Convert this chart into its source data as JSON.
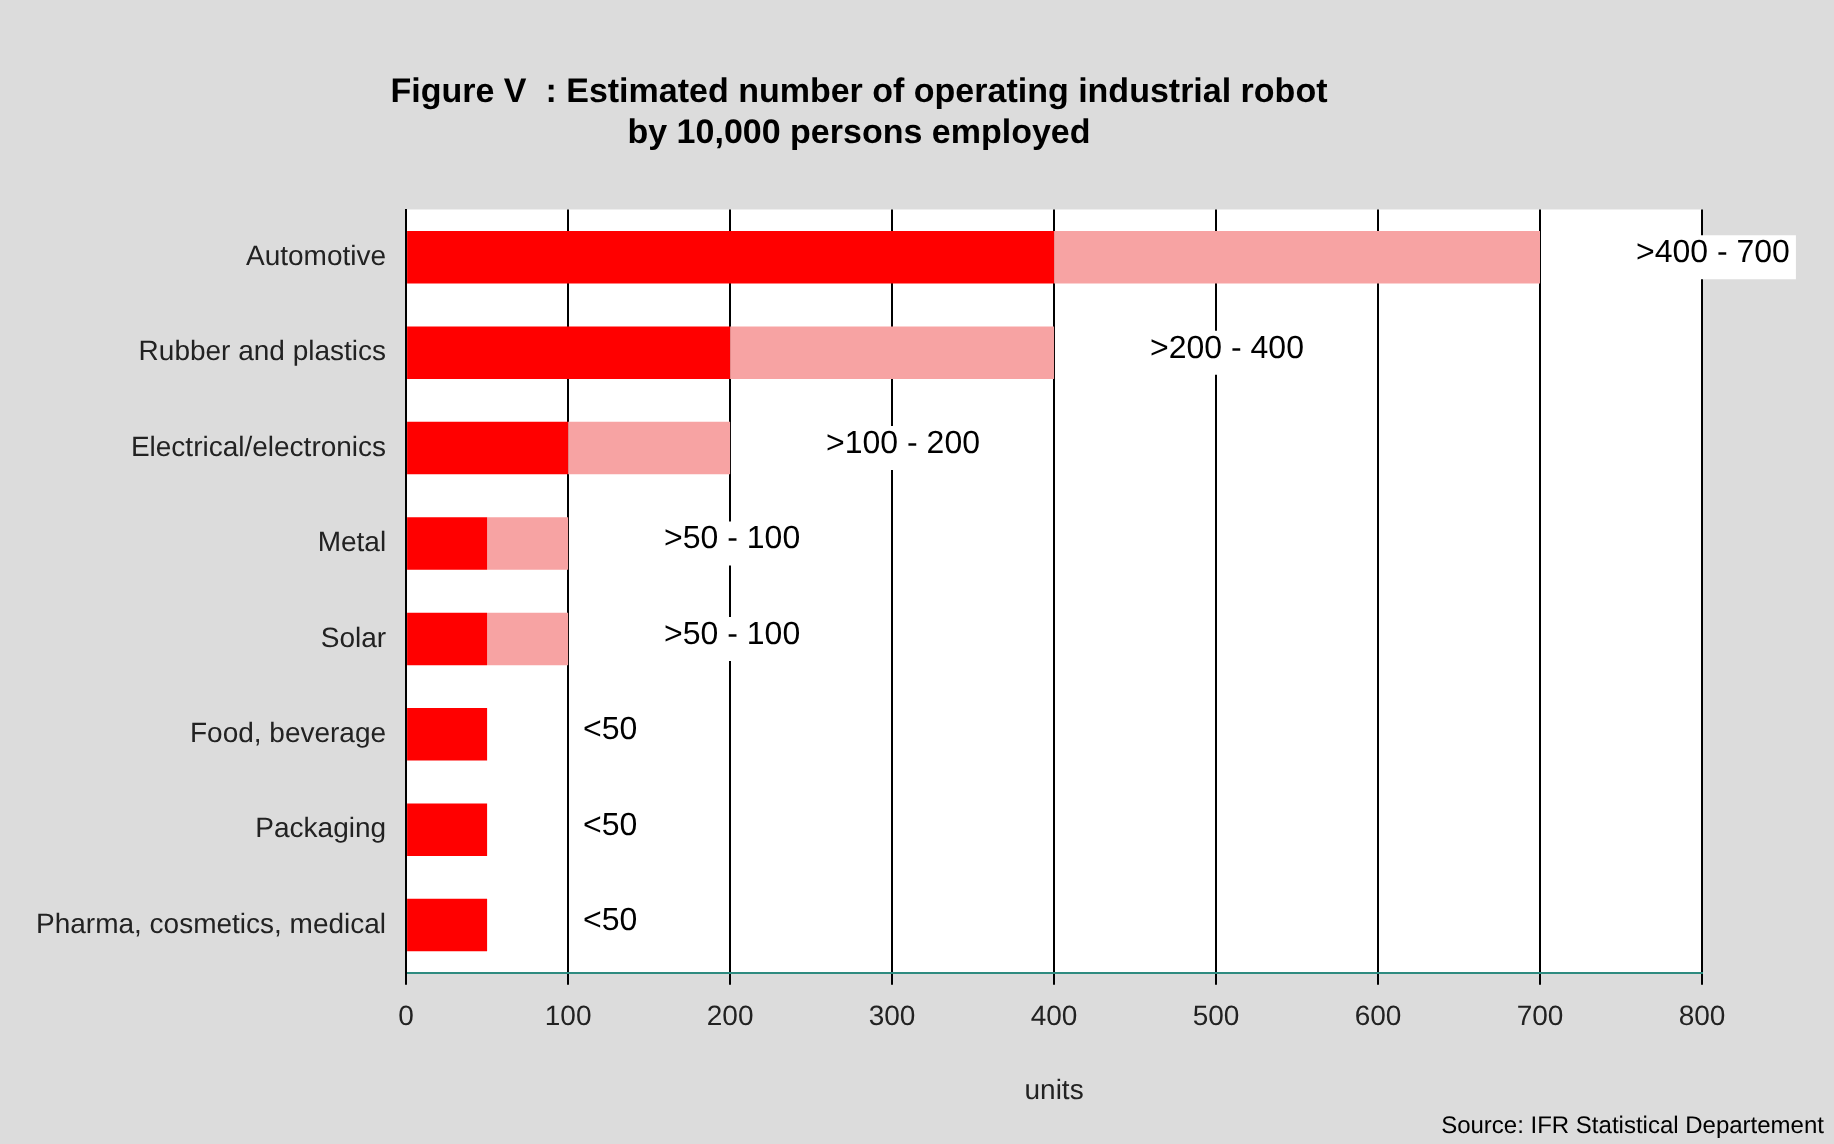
{
  "chart_data": {
    "type": "bar",
    "orientation": "horizontal",
    "stacked": true,
    "title": "Figure V  : Estimated number of operating industrial robot\nby 10,000 persons employed",
    "xlabel": "units",
    "categories": [
      "Automotive",
      "Rubber and plastics",
      "Electrical/electronics",
      "Metal",
      "Solar",
      "Food, beverage",
      "Packaging",
      "Pharma, cosmetics, medical"
    ],
    "series": [
      {
        "color": "#ff0000",
        "values": [
          400,
          200,
          100,
          50,
          50,
          50,
          50,
          50
        ],
        "value_labels": [
          null,
          null,
          null,
          null,
          null,
          "<50",
          "<50",
          "<50"
        ]
      },
      {
        "color": "#f7a3a3",
        "values": [
          300,
          200,
          100,
          50,
          50,
          null,
          null,
          null
        ],
        "value_labels": [
          ">400 - 700",
          ">200 - 400",
          ">100 - 200",
          ">50 - 100",
          ">50 - 100",
          null,
          null,
          null
        ]
      }
    ],
    "xlim": [
      0,
      800
    ],
    "xticks": [
      0,
      100,
      200,
      300,
      400,
      500,
      600,
      700,
      800
    ],
    "grid": "x",
    "legend": false,
    "annotations": [
      "Source: IFR Statistical Departement"
    ]
  }
}
